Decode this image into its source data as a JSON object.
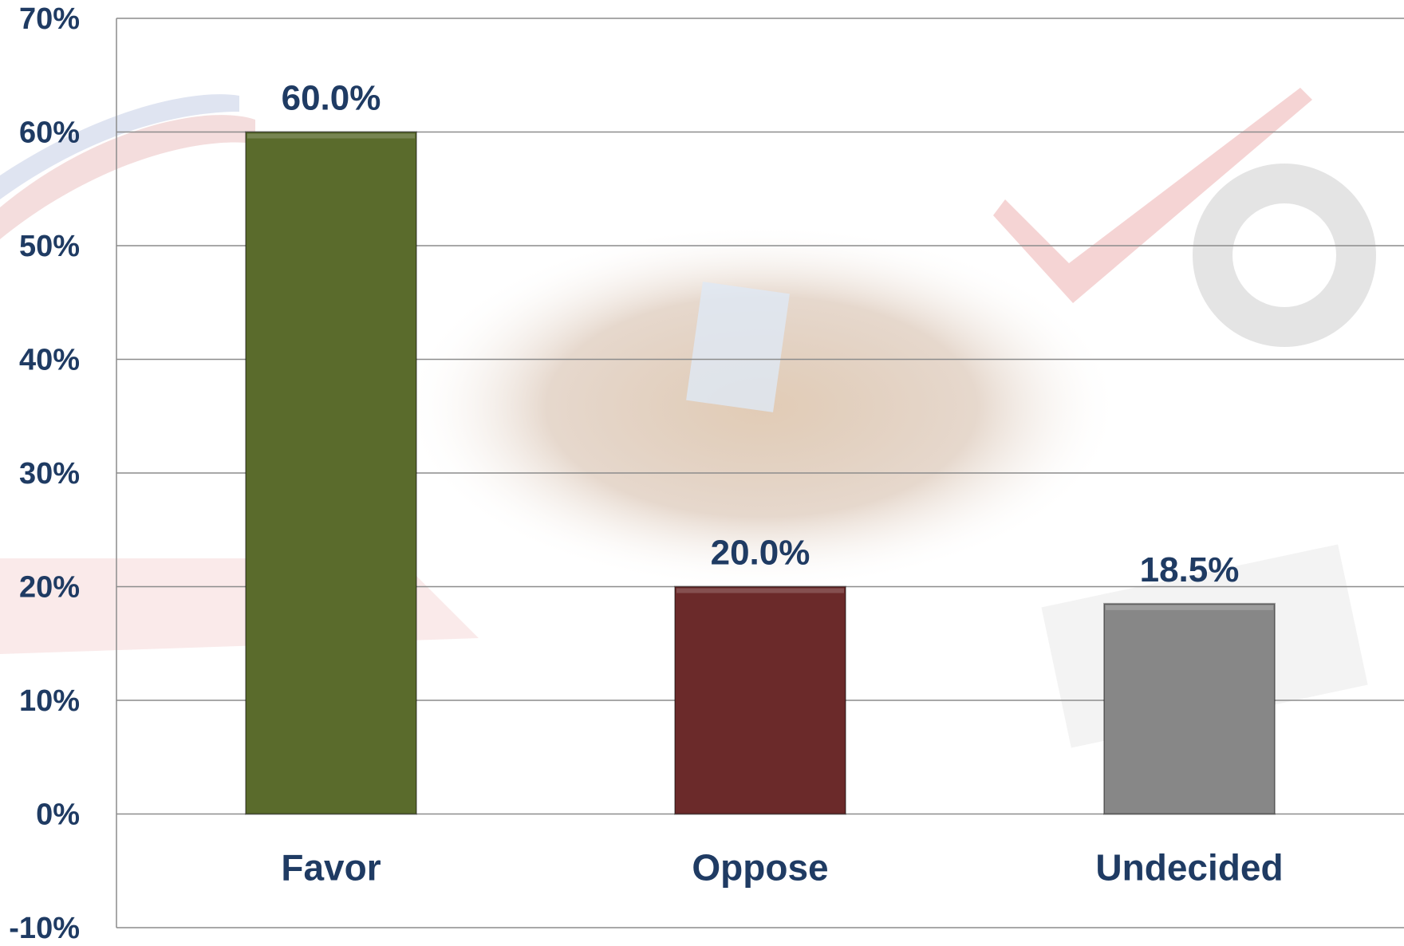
{
  "chart_data": {
    "type": "bar",
    "categories": [
      "Favor",
      "Oppose",
      "Undecided"
    ],
    "values": [
      60.0,
      20.0,
      18.5
    ],
    "data_labels": [
      "60.0%",
      "20.0%",
      "18.5%"
    ],
    "colors": [
      "#5a6b2c",
      "#6b2a2a",
      "#878787"
    ],
    "ylim": [
      -10,
      70
    ],
    "yticks": [
      -10,
      0,
      10,
      20,
      30,
      40,
      50,
      60,
      70
    ],
    "ytick_labels": [
      "-10%",
      "0%",
      "10%",
      "20%",
      "30%",
      "40%",
      "50%",
      "60%",
      "70%"
    ],
    "grid": true,
    "legend": "none",
    "title": "",
    "xlabel": "",
    "ylabel": ""
  },
  "colors": {
    "text": "#1f3b63",
    "grid": "#8c8c8c",
    "axis": "#8c8c8c"
  }
}
